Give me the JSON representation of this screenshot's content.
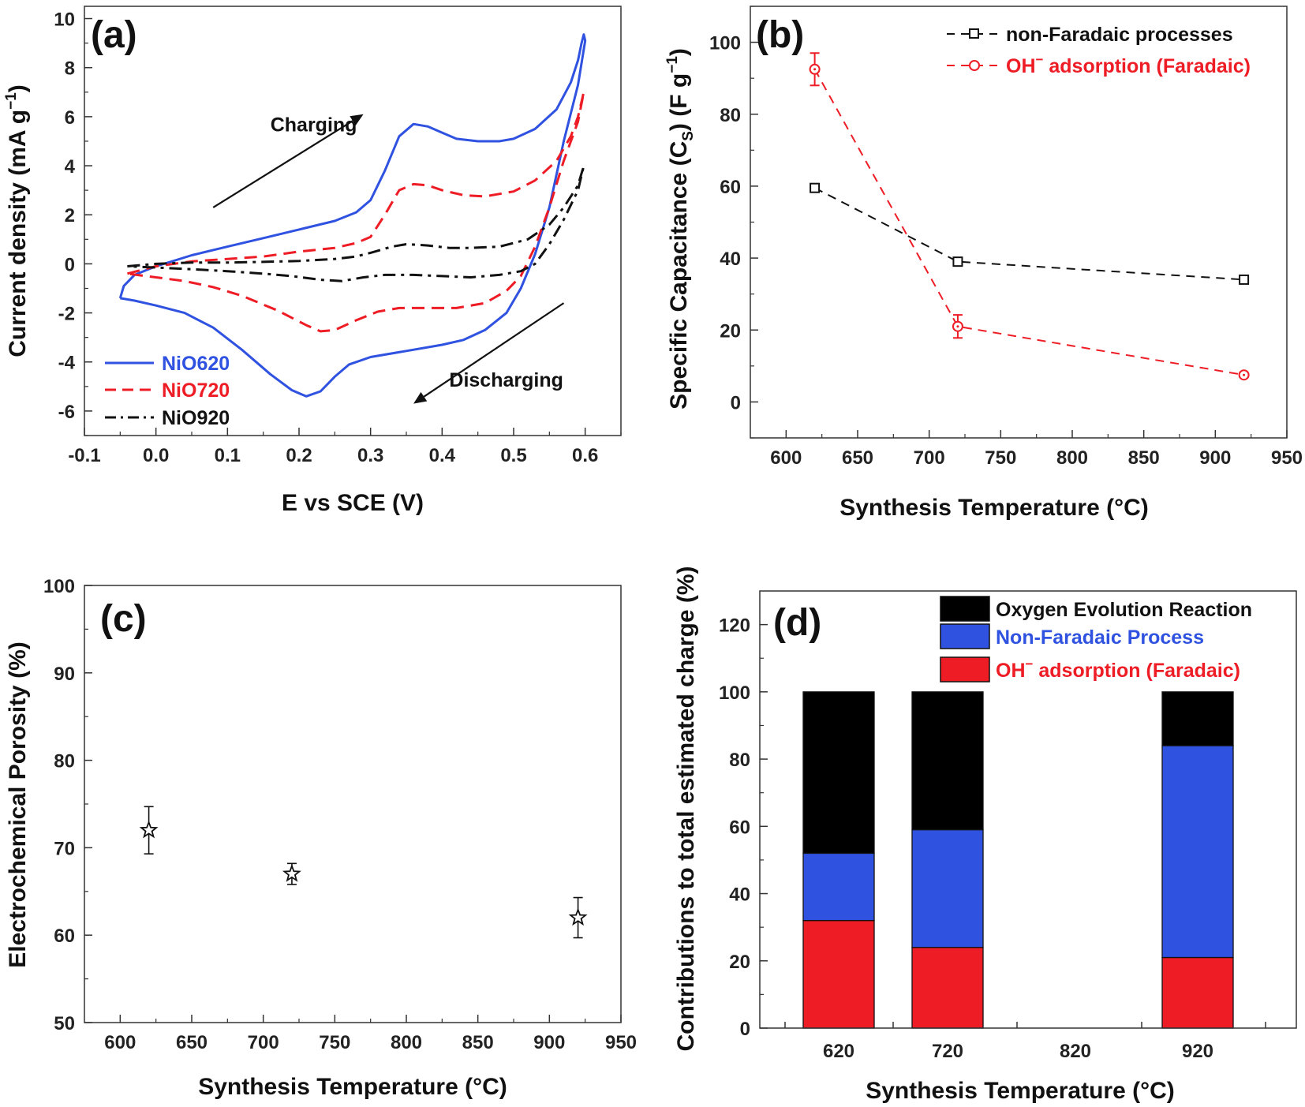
{
  "colors": {
    "blue": "#2f52e0",
    "red": "#ee1c25",
    "black": "#111111",
    "gray": "#222222"
  },
  "chart_data": [
    {
      "panel": "(a)",
      "type": "line",
      "xlabel": "E vs SCE (V)",
      "ylabel": "Current density (mA g⁻¹)",
      "ylabel_main": "Current density (mA g",
      "ylabel_sup": "−1",
      "ylabel_close": ")",
      "xlim": [
        -0.1,
        0.65
      ],
      "ylim": [
        -7,
        10.5
      ],
      "xticks": [
        -0.1,
        0.0,
        0.1,
        0.2,
        0.3,
        0.4,
        0.5,
        0.6
      ],
      "xtick_labels": [
        "-0.1",
        "0.0",
        "0.1",
        "0.2",
        "0.3",
        "0.4",
        "0.5",
        "0.6"
      ],
      "yticks": [
        -6,
        -4,
        -2,
        0,
        2,
        4,
        6,
        8,
        10
      ],
      "legend_position": "bottom-left",
      "annotations": [
        {
          "text": "Charging",
          "x": 0.16,
          "y": 5.4,
          "arrow_from": [
            0.08,
            2.3
          ],
          "arrow_to": [
            0.29,
            6.1
          ]
        },
        {
          "text": "Discharging",
          "x": 0.41,
          "y": -5.0,
          "arrow_from": [
            0.57,
            -1.6
          ],
          "arrow_to": [
            0.36,
            -5.7
          ]
        }
      ],
      "series": [
        {
          "name": "NiO620",
          "color": "#2f52e0",
          "dash": "solid",
          "points": [
            [
              -0.05,
              -1.4
            ],
            [
              -0.045,
              -0.9
            ],
            [
              -0.03,
              -0.45
            ],
            [
              0.0,
              -0.1
            ],
            [
              0.05,
              0.35
            ],
            [
              0.1,
              0.7
            ],
            [
              0.15,
              1.05
            ],
            [
              0.2,
              1.4
            ],
            [
              0.25,
              1.75
            ],
            [
              0.28,
              2.1
            ],
            [
              0.3,
              2.6
            ],
            [
              0.32,
              3.8
            ],
            [
              0.34,
              5.2
            ],
            [
              0.36,
              5.7
            ],
            [
              0.38,
              5.6
            ],
            [
              0.4,
              5.35
            ],
            [
              0.42,
              5.1
            ],
            [
              0.45,
              5.0
            ],
            [
              0.48,
              5.0
            ],
            [
              0.5,
              5.1
            ],
            [
              0.53,
              5.5
            ],
            [
              0.56,
              6.3
            ],
            [
              0.58,
              7.4
            ],
            [
              0.59,
              8.3
            ],
            [
              0.595,
              9.0
            ],
            [
              0.598,
              9.35
            ],
            [
              0.6,
              9.1
            ],
            [
              0.59,
              7.3
            ],
            [
              0.57,
              5.0
            ],
            [
              0.55,
              2.3
            ],
            [
              0.53,
              0.4
            ],
            [
              0.51,
              -1.0
            ],
            [
              0.49,
              -2.0
            ],
            [
              0.46,
              -2.7
            ],
            [
              0.43,
              -3.1
            ],
            [
              0.4,
              -3.3
            ],
            [
              0.35,
              -3.55
            ],
            [
              0.3,
              -3.8
            ],
            [
              0.27,
              -4.1
            ],
            [
              0.25,
              -4.6
            ],
            [
              0.23,
              -5.2
            ],
            [
              0.21,
              -5.4
            ],
            [
              0.19,
              -5.15
            ],
            [
              0.16,
              -4.5
            ],
            [
              0.12,
              -3.5
            ],
            [
              0.08,
              -2.6
            ],
            [
              0.04,
              -2.0
            ],
            [
              0.0,
              -1.7
            ],
            [
              -0.03,
              -1.5
            ],
            [
              -0.05,
              -1.4
            ]
          ]
        },
        {
          "name": "NiO720",
          "color": "#ee1c25",
          "dash": "dashed",
          "points": [
            [
              -0.04,
              -0.4
            ],
            [
              0.0,
              -0.1
            ],
            [
              0.05,
              0.1
            ],
            [
              0.1,
              0.2
            ],
            [
              0.15,
              0.3
            ],
            [
              0.2,
              0.5
            ],
            [
              0.25,
              0.65
            ],
            [
              0.28,
              0.85
            ],
            [
              0.3,
              1.1
            ],
            [
              0.32,
              2.0
            ],
            [
              0.34,
              3.0
            ],
            [
              0.36,
              3.25
            ],
            [
              0.38,
              3.2
            ],
            [
              0.4,
              3.0
            ],
            [
              0.43,
              2.8
            ],
            [
              0.46,
              2.75
            ],
            [
              0.5,
              2.95
            ],
            [
              0.53,
              3.4
            ],
            [
              0.56,
              4.2
            ],
            [
              0.58,
              5.2
            ],
            [
              0.59,
              6.0
            ],
            [
              0.598,
              7.0
            ],
            [
              0.59,
              5.8
            ],
            [
              0.57,
              4.2
            ],
            [
              0.55,
              2.3
            ],
            [
              0.53,
              0.7
            ],
            [
              0.51,
              -0.5
            ],
            [
              0.49,
              -1.1
            ],
            [
              0.46,
              -1.6
            ],
            [
              0.42,
              -1.8
            ],
            [
              0.38,
              -1.8
            ],
            [
              0.34,
              -1.8
            ],
            [
              0.31,
              -1.95
            ],
            [
              0.28,
              -2.3
            ],
            [
              0.25,
              -2.7
            ],
            [
              0.23,
              -2.75
            ],
            [
              0.21,
              -2.5
            ],
            [
              0.17,
              -1.9
            ],
            [
              0.12,
              -1.3
            ],
            [
              0.08,
              -0.95
            ],
            [
              0.04,
              -0.7
            ],
            [
              0.0,
              -0.55
            ],
            [
              -0.04,
              -0.4
            ]
          ]
        },
        {
          "name": "NiO920",
          "color": "#111111",
          "dash": "dashdot",
          "points": [
            [
              -0.04,
              -0.1
            ],
            [
              0.0,
              0.0
            ],
            [
              0.05,
              0.05
            ],
            [
              0.1,
              0.05
            ],
            [
              0.15,
              0.08
            ],
            [
              0.2,
              0.12
            ],
            [
              0.25,
              0.2
            ],
            [
              0.28,
              0.3
            ],
            [
              0.3,
              0.45
            ],
            [
              0.33,
              0.7
            ],
            [
              0.35,
              0.8
            ],
            [
              0.38,
              0.75
            ],
            [
              0.41,
              0.65
            ],
            [
              0.44,
              0.65
            ],
            [
              0.48,
              0.7
            ],
            [
              0.52,
              1.0
            ],
            [
              0.55,
              1.6
            ],
            [
              0.57,
              2.3
            ],
            [
              0.59,
              3.2
            ],
            [
              0.598,
              4.0
            ],
            [
              0.59,
              3.0
            ],
            [
              0.57,
              1.8
            ],
            [
              0.55,
              0.8
            ],
            [
              0.53,
              0.0
            ],
            [
              0.51,
              -0.3
            ],
            [
              0.48,
              -0.45
            ],
            [
              0.44,
              -0.55
            ],
            [
              0.4,
              -0.5
            ],
            [
              0.36,
              -0.45
            ],
            [
              0.32,
              -0.45
            ],
            [
              0.29,
              -0.55
            ],
            [
              0.26,
              -0.7
            ],
            [
              0.23,
              -0.65
            ],
            [
              0.19,
              -0.5
            ],
            [
              0.15,
              -0.4
            ],
            [
              0.1,
              -0.3
            ],
            [
              0.05,
              -0.22
            ],
            [
              0.0,
              -0.15
            ],
            [
              -0.04,
              -0.1
            ]
          ]
        }
      ]
    },
    {
      "panel": "(b)",
      "type": "line",
      "xlabel": "Synthesis Temperature (°C)",
      "ylabel": "Specific Capacitance (Cs) (F g⁻¹)",
      "ylabel_parts": [
        "Specific Capacitance (C",
        "S",
        ") (F g",
        "−1",
        ")"
      ],
      "xlim": [
        575,
        950
      ],
      "ylim": [
        -10,
        110
      ],
      "xticks": [
        600,
        650,
        700,
        750,
        800,
        850,
        900,
        950
      ],
      "yticks": [
        0,
        20,
        40,
        60,
        80,
        100
      ],
      "legend_position": "top-right",
      "series": [
        {
          "name": "non-Faradaic processes",
          "color": "#111111",
          "marker": "square",
          "x": [
            620,
            720,
            920
          ],
          "y": [
            59.5,
            39,
            34
          ],
          "err": [
            0,
            0,
            0
          ]
        },
        {
          "name": "OH⁻ adsorption (Faradaic)",
          "name_base": "OH",
          "name_sup": "−",
          "name_rest": " adsorption (Faradaic)",
          "color": "#ee1c25",
          "marker": "circle",
          "x": [
            620,
            720,
            920
          ],
          "y": [
            92.5,
            21,
            7.5
          ],
          "err": [
            4.5,
            3.2,
            0.6
          ]
        }
      ]
    },
    {
      "panel": "(c)",
      "type": "scatter",
      "xlabel": "Synthesis Temperature (°C)",
      "ylabel": "Electrochemical Porosity (%)",
      "xlim": [
        575,
        950
      ],
      "ylim": [
        50,
        100
      ],
      "xticks": [
        600,
        650,
        700,
        750,
        800,
        850,
        900,
        950
      ],
      "yticks": [
        50,
        60,
        70,
        80,
        90,
        100
      ],
      "marker": "star",
      "x": [
        620,
        720,
        920
      ],
      "y": [
        72,
        67,
        62
      ],
      "err": [
        2.7,
        1.2,
        2.3
      ]
    },
    {
      "panel": "(d)",
      "type": "bar",
      "stacked": true,
      "xlabel": "Synthesis Temperature (°C)",
      "ylabel": "Contributions to total estimated charge (%)",
      "categories": [
        "620",
        "720",
        "820",
        "920"
      ],
      "ylim": [
        0,
        130
      ],
      "yticks": [
        0,
        20,
        40,
        60,
        80,
        100,
        120
      ],
      "legend_position": "top-right",
      "series": [
        {
          "name": "OH⁻ adsorption (Faradaic)",
          "name_base": "OH",
          "name_sup": "−",
          "name_rest": " adsorption (Faradaic)",
          "color": "#ee1c25",
          "values": [
            32,
            24,
            null,
            21
          ]
        },
        {
          "name": "Non-Faradaic Process",
          "color": "#2f52e0",
          "values": [
            20,
            35,
            null,
            63
          ]
        },
        {
          "name": "Oxygen Evolution Reaction",
          "color": "#000000",
          "values": [
            48,
            41,
            null,
            16
          ]
        }
      ]
    }
  ]
}
